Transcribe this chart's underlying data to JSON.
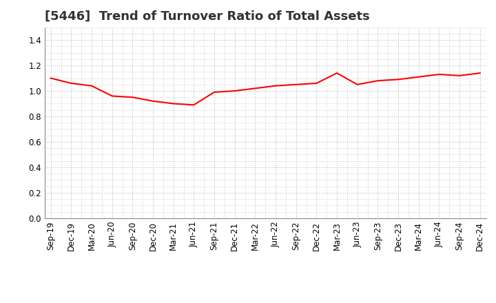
{
  "title": "[5446]  Trend of Turnover Ratio of Total Assets",
  "x_labels": [
    "Sep-19",
    "Dec-19",
    "Mar-20",
    "Jun-20",
    "Sep-20",
    "Dec-20",
    "Mar-21",
    "Jun-21",
    "Sep-21",
    "Dec-21",
    "Mar-22",
    "Jun-22",
    "Sep-22",
    "Dec-22",
    "Mar-23",
    "Jun-23",
    "Sep-23",
    "Dec-23",
    "Mar-24",
    "Jun-24",
    "Sep-24",
    "Dec-24"
  ],
  "y_values": [
    1.1,
    1.06,
    1.04,
    0.96,
    0.95,
    0.92,
    0.9,
    0.89,
    0.99,
    1.0,
    1.02,
    1.04,
    1.05,
    1.06,
    1.14,
    1.05,
    1.08,
    1.09,
    1.11,
    1.13,
    1.12,
    1.14
  ],
  "line_color": "#ff0000",
  "line_width": 1.5,
  "ylim": [
    0.0,
    1.5
  ],
  "yticks": [
    0.0,
    0.2,
    0.4,
    0.6,
    0.8,
    1.0,
    1.2,
    1.4
  ],
  "grid_color": "#bbbbbb",
  "background_color": "#ffffff",
  "title_fontsize": 13,
  "tick_fontsize": 8.5,
  "title_color": "#333333"
}
